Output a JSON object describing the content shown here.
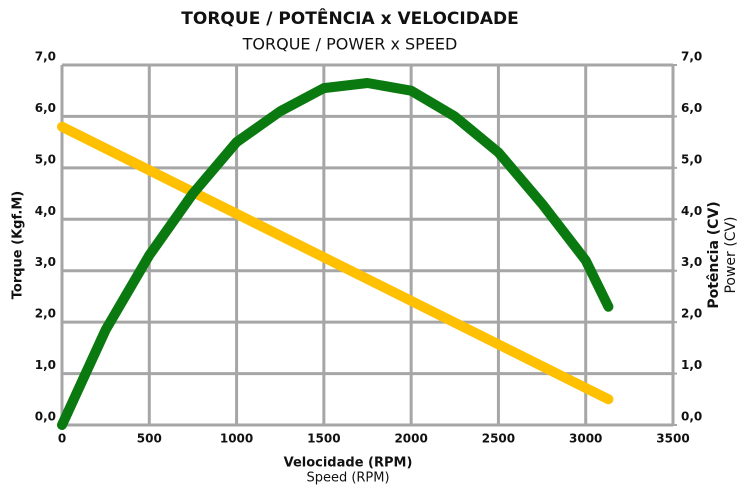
{
  "chart_data": {
    "type": "line",
    "title": "TORQUE / POTÊNCIA x VELOCIDADE",
    "subtitle": "TORQUE / POWER x SPEED",
    "x_label": "Velocidade (RPM)",
    "x_label_sub": "Speed (RPM)",
    "y_label": "Torque (Kgf.M)",
    "y2_label": "Potência (CV)",
    "y2_label_sub": "Power (CV)",
    "xlim": [
      0,
      3500
    ],
    "xticks": [
      0,
      500,
      1000,
      1500,
      2000,
      2500,
      3000,
      3500
    ],
    "ylim": [
      0,
      7
    ],
    "yticks": [
      {
        "value": 0,
        "label": "0,0"
      },
      {
        "value": 1,
        "label": "1,0"
      },
      {
        "value": 2,
        "label": "2,0"
      },
      {
        "value": 3,
        "label": "3,0"
      },
      {
        "value": 4,
        "label": "4,0"
      },
      {
        "value": 5,
        "label": "5,0"
      },
      {
        "value": 6,
        "label": "6,0"
      },
      {
        "value": 7,
        "label": "7,0"
      }
    ],
    "y2lim": [
      0,
      7
    ],
    "y2ticks": [
      {
        "value": 0,
        "label": "0,0"
      },
      {
        "value": 1,
        "label": "1,0"
      },
      {
        "value": 2,
        "label": "2,0"
      },
      {
        "value": 3,
        "label": "3,0"
      },
      {
        "value": 4,
        "label": "4,0"
      },
      {
        "value": 5,
        "label": "5,0"
      },
      {
        "value": 6,
        "label": "6,0"
      },
      {
        "value": 7,
        "label": "7,0"
      }
    ],
    "grid": true,
    "series": [
      {
        "color": "#ffc000",
        "axis": "y",
        "x": [
          0,
          3130
        ],
        "values": [
          5.8,
          0.5
        ]
      },
      {
        "color": "#0a7a10",
        "axis": "y2",
        "x": [
          0,
          250,
          500,
          750,
          1000,
          1250,
          1500,
          1750,
          2000,
          2250,
          2500,
          2750,
          3000,
          3130
        ],
        "values": [
          0,
          1.85,
          3.3,
          4.5,
          5.5,
          6.1,
          6.55,
          6.65,
          6.5,
          6.0,
          5.3,
          4.3,
          3.2,
          2.3
        ]
      }
    ]
  }
}
